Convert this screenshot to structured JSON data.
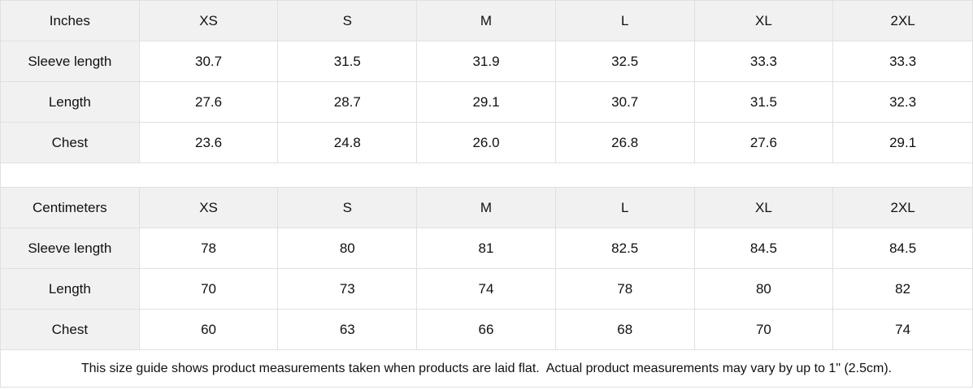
{
  "tables": [
    {
      "unit_label": "Inches",
      "columns": [
        "XS",
        "S",
        "M",
        "L",
        "XL",
        "2XL"
      ],
      "rows": [
        {
          "label": "Sleeve length",
          "values": [
            "30.7",
            "31.5",
            "31.9",
            "32.5",
            "33.3",
            "33.3"
          ]
        },
        {
          "label": "Length",
          "values": [
            "27.6",
            "28.7",
            "29.1",
            "30.7",
            "31.5",
            "32.3"
          ]
        },
        {
          "label": "Chest",
          "values": [
            "23.6",
            "24.8",
            "26.0",
            "26.8",
            "27.6",
            "29.1"
          ]
        }
      ]
    },
    {
      "unit_label": "Centimeters",
      "columns": [
        "XS",
        "S",
        "M",
        "L",
        "XL",
        "2XL"
      ],
      "rows": [
        {
          "label": "Sleeve length",
          "values": [
            "78",
            "80",
            "81",
            "82.5",
            "84.5",
            "84.5"
          ]
        },
        {
          "label": "Length",
          "values": [
            "70",
            "73",
            "74",
            "78",
            "80",
            "82"
          ]
        },
        {
          "label": "Chest",
          "values": [
            "60",
            "63",
            "66",
            "68",
            "70",
            "74"
          ]
        }
      ]
    }
  ],
  "footer": {
    "note": "This size guide shows product measurements taken when products are laid flat.  Actual product measurements may vary by up to 1\" (2.5cm)."
  },
  "colors": {
    "header_bg": "#f1f1f1",
    "border_color": "#e0e0e0",
    "text_color": "#111111"
  }
}
